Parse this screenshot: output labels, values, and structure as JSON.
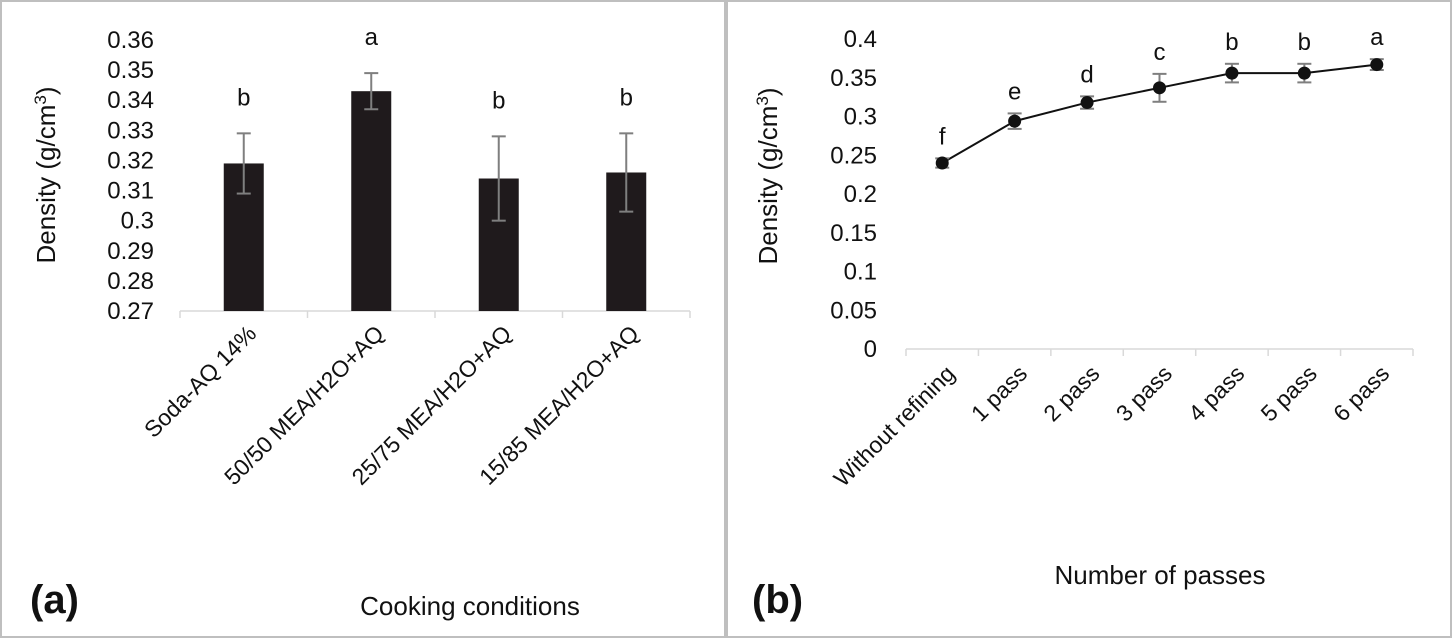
{
  "chart_data": [
    {
      "type": "bar",
      "panel_label": "(a)",
      "categories": [
        "Soda-AQ 14%",
        "50/50 MEA/H2O+AQ",
        "25/75 MEA/H2O+AQ",
        "15/85 MEA/H2O+AQ"
      ],
      "values": [
        0.319,
        0.343,
        0.314,
        0.316
      ],
      "errors": [
        0.01,
        0.006,
        0.014,
        0.013
      ],
      "letters": [
        "b",
        "a",
        "b",
        "b"
      ],
      "xlabel": "Cooking conditions",
      "ylabel": "Density (g/cm",
      "ylabel_sup": "3",
      "ylabel_close": ")",
      "ylim": [
        0.27,
        0.36
      ],
      "yticks": [
        "0.27",
        "0.28",
        "0.29",
        "0.3",
        "0.31",
        "0.32",
        "0.33",
        "0.34",
        "0.35",
        "0.36"
      ],
      "bar_color": "#1f1a1c",
      "error_color": "#7f7f7f"
    },
    {
      "type": "line",
      "panel_label": "(b)",
      "categories": [
        "Without refining",
        "1 pass",
        "2 pass",
        "3 pass",
        "4 pass",
        "5 pass",
        "6 pass"
      ],
      "values": [
        0.24,
        0.294,
        0.318,
        0.337,
        0.356,
        0.356,
        0.367
      ],
      "errors": [
        0.006,
        0.01,
        0.008,
        0.018,
        0.012,
        0.012,
        0.007
      ],
      "letters": [
        "f",
        "e",
        "d",
        "c",
        "b",
        "b",
        "a"
      ],
      "xlabel": "Number of passes",
      "ylabel": "Density (g/cm",
      "ylabel_sup": "3",
      "ylabel_close": ")",
      "ylim": [
        0,
        0.4
      ],
      "yticks": [
        "0",
        "0.05",
        "0.1",
        "0.15",
        "0.2",
        "0.25",
        "0.3",
        "0.35",
        "0.4"
      ],
      "line_color": "#111111",
      "marker_color": "#111111",
      "error_color": "#7f7f7f"
    }
  ],
  "colors": {
    "frame": "#bfbfbf",
    "axis": "#d9d9d9"
  }
}
